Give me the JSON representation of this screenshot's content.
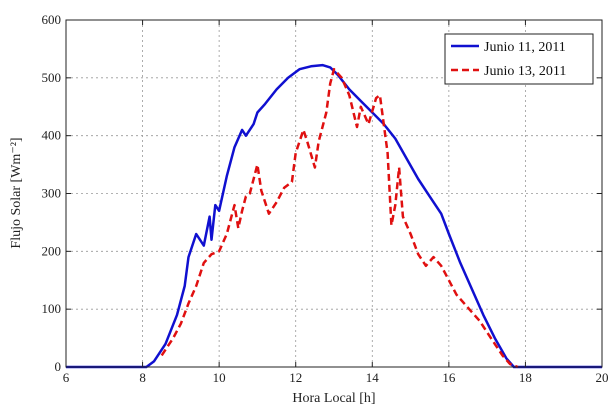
{
  "chart_data": {
    "type": "line",
    "xlabel": "Hora Local [h]",
    "ylabel": "Flujo Solar [Wm⁻²]",
    "xlim": [
      6,
      20
    ],
    "ylim": [
      0,
      600
    ],
    "xticks": [
      6,
      8,
      10,
      12,
      14,
      16,
      18,
      20
    ],
    "yticks": [
      0,
      100,
      200,
      300,
      400,
      500,
      600
    ],
    "xtick_labels": [
      "6",
      "8",
      "10",
      "12",
      "14",
      "16",
      "18",
      "20"
    ],
    "ytick_labels": [
      "0",
      "100",
      "200",
      "300",
      "400",
      "500",
      "600"
    ],
    "grid": true,
    "legend_position": "top-right",
    "series": [
      {
        "name": "Junio 11, 2011",
        "color": "#1010d0",
        "style": "solid",
        "x": [
          6.0,
          8.1,
          8.3,
          8.6,
          8.9,
          9.1,
          9.2,
          9.4,
          9.6,
          9.75,
          9.8,
          9.9,
          10.0,
          10.2,
          10.4,
          10.6,
          10.7,
          10.9,
          11.0,
          11.2,
          11.5,
          11.8,
          12.1,
          12.4,
          12.7,
          12.9,
          13.1,
          13.4,
          13.7,
          14.0,
          14.3,
          14.6,
          14.9,
          15.2,
          15.5,
          15.8,
          16.0,
          16.3,
          16.6,
          16.9,
          17.2,
          17.5,
          17.7,
          18.0,
          20.0
        ],
        "y": [
          0,
          0,
          10,
          40,
          90,
          140,
          190,
          230,
          210,
          260,
          220,
          280,
          270,
          330,
          380,
          410,
          400,
          420,
          440,
          455,
          480,
          500,
          515,
          520,
          522,
          518,
          505,
          480,
          460,
          440,
          420,
          395,
          360,
          325,
          295,
          265,
          230,
          180,
          135,
          90,
          50,
          15,
          0,
          0,
          0
        ]
      },
      {
        "name": "Junio 13, 2011",
        "color": "#e01010",
        "style": "dashed",
        "x": [
          8.5,
          8.8,
          9.0,
          9.2,
          9.4,
          9.6,
          9.8,
          10.0,
          10.2,
          10.4,
          10.5,
          10.6,
          10.7,
          10.8,
          11.0,
          11.1,
          11.3,
          11.5,
          11.7,
          11.9,
          12.0,
          12.2,
          12.3,
          12.5,
          12.6,
          12.8,
          12.9,
          13.0,
          13.2,
          13.4,
          13.6,
          13.7,
          13.9,
          14.1,
          14.2,
          14.4,
          14.5,
          14.6,
          14.7,
          14.8,
          15.0,
          15.2,
          15.4,
          15.6,
          15.8,
          16.0,
          16.2,
          16.4,
          16.6,
          16.8,
          17.0,
          17.2,
          17.4,
          17.6,
          17.8
        ],
        "y": [
          20,
          50,
          75,
          110,
          140,
          180,
          195,
          200,
          230,
          280,
          240,
          270,
          295,
          300,
          350,
          305,
          265,
          285,
          310,
          320,
          370,
          410,
          390,
          345,
          390,
          440,
          490,
          515,
          500,
          470,
          415,
          450,
          420,
          465,
          470,
          370,
          245,
          280,
          345,
          260,
          230,
          195,
          175,
          190,
          175,
          150,
          125,
          110,
          95,
          80,
          60,
          40,
          20,
          5,
          0
        ]
      }
    ]
  }
}
